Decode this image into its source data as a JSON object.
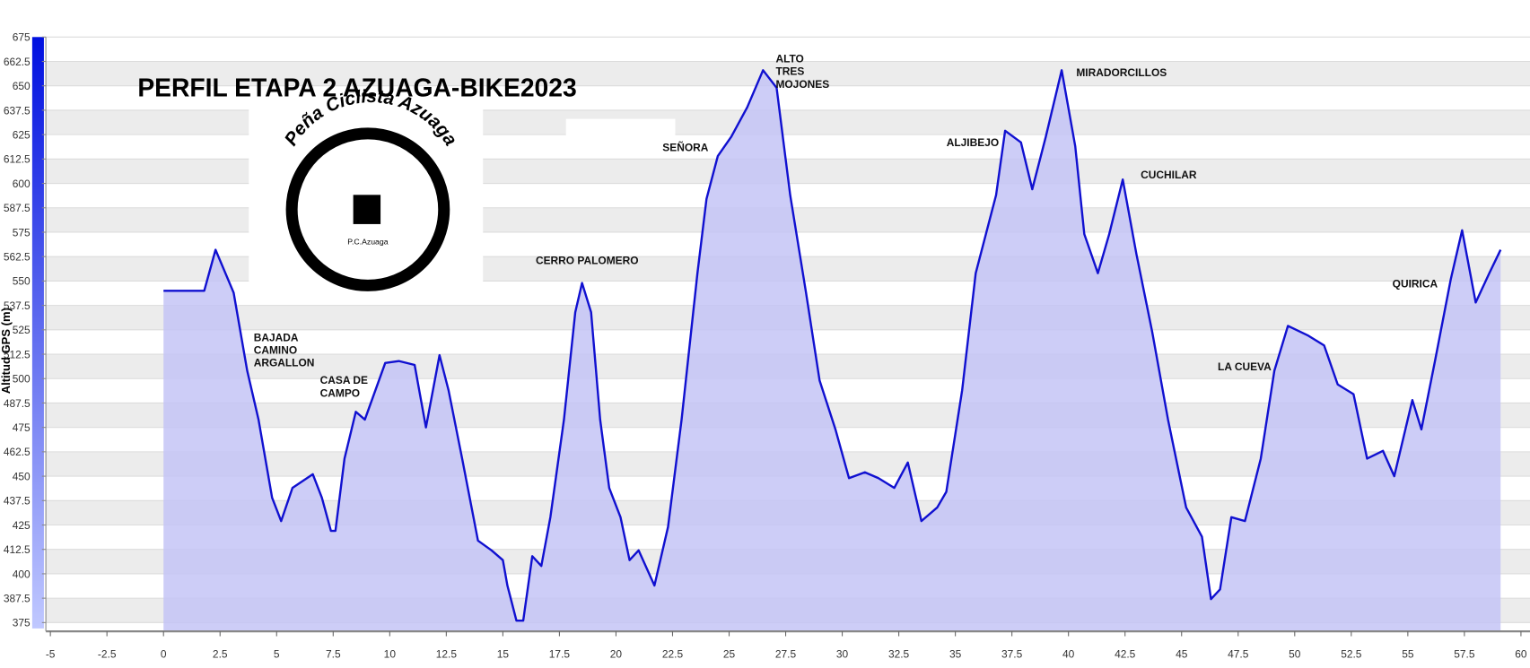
{
  "chart_data": {
    "type": "area",
    "title": "PERFIL ETAPA 2 AZUAGA-BIKE2023",
    "y_label": "Altitud GPS (m)",
    "logo": {
      "name": "Peña Ciclista Azuaga",
      "short": "P.C.Azuaga"
    },
    "annotations": [
      [
        "BAJADA",
        "CAMINO",
        "ARGALLON"
      ],
      [
        "CASA DE",
        "CAMPO"
      ],
      [
        "CERRO PALOMERO"
      ],
      [
        "SEÑORA"
      ],
      [
        "ALTO",
        "TRES",
        "MOJONES"
      ],
      [
        "ALJIBEJO"
      ],
      [
        "MIRADORCILLOS"
      ],
      [
        "CUCHILAR"
      ],
      [
        "LA CUEVA"
      ],
      [
        "QUIRICA"
      ]
    ],
    "x": [
      0,
      1.8,
      2.3,
      3.1,
      3.7,
      4.2,
      4.8,
      5.2,
      5.7,
      6.6,
      7.0,
      7.4,
      7.6,
      8.0,
      8.5,
      8.9,
      9.8,
      10.4,
      11.1,
      11.6,
      12.2,
      12.6,
      13.2,
      13.9,
      14.5,
      15.0,
      15.2,
      15.6,
      15.9,
      16.3,
      16.7,
      17.1,
      17.7,
      18.2,
      18.5,
      18.9,
      19.3,
      19.7,
      20.2,
      20.6,
      21.0,
      21.7,
      22.3,
      22.9,
      23.6,
      24.0,
      24.5,
      25.1,
      25.8,
      26.5,
      27.1,
      27.7,
      28.4,
      29.0,
      29.7,
      30.3,
      31.0,
      31.6,
      32.3,
      32.9,
      33.5,
      34.2,
      34.6,
      35.3,
      35.9,
      36.8,
      37.2,
      37.9,
      38.4,
      39.0,
      39.7,
      40.3,
      40.7,
      41.3,
      41.8,
      42.4,
      43.0,
      43.7,
      44.4,
      45.2,
      45.9,
      46.3,
      46.7,
      47.2,
      47.8,
      48.5,
      49.1,
      49.7,
      50.6,
      51.3,
      51.9,
      52.6,
      53.2,
      53.9,
      54.4,
      55.2,
      55.6,
      56.2,
      56.9,
      57.4,
      58.0,
      58.6,
      59.1
    ],
    "values": [
      545,
      545,
      566,
      544,
      504,
      479,
      439,
      427,
      444,
      451,
      439,
      422,
      422,
      459,
      483,
      479,
      508,
      509,
      507,
      475,
      512,
      494,
      459,
      417,
      412,
      407,
      394,
      376,
      376,
      409,
      404,
      429,
      479,
      534,
      549,
      534,
      479,
      444,
      429,
      407,
      412,
      394,
      424,
      479,
      554,
      592,
      614,
      624,
      639,
      658,
      649,
      594,
      544,
      499,
      474,
      449,
      452,
      449,
      444,
      457,
      427,
      434,
      442,
      494,
      554,
      594,
      627,
      621,
      597,
      624,
      658,
      619,
      574,
      554,
      574,
      602,
      564,
      524,
      479,
      434,
      419,
      387,
      392,
      429,
      427,
      459,
      504,
      527,
      522,
      517,
      497,
      492,
      459,
      463,
      450,
      489,
      474,
      509,
      551,
      576,
      539,
      554,
      566
    ],
    "color": "#1010d0",
    "fill": "#c4c4f6",
    "xlim": [
      -5.2,
      60.4
    ],
    "xticks": [
      -5,
      -2.5,
      0,
      2.5,
      5,
      7.5,
      10,
      12.5,
      15,
      17.5,
      20,
      22.5,
      25,
      27.5,
      30,
      32.5,
      35,
      37.5,
      40,
      42.5,
      45,
      47.5,
      50,
      52.5,
      55,
      57.5,
      60
    ],
    "ylim": [
      370.5,
      675
    ],
    "yticks": [
      375,
      387.5,
      400,
      412.5,
      425,
      437.5,
      450,
      462.5,
      475,
      487.5,
      500,
      512.5,
      525,
      537.5,
      550,
      562.5,
      575,
      587.5,
      600,
      612.5,
      625,
      637.5,
      650,
      662.5,
      675
    ],
    "grid": true
  }
}
